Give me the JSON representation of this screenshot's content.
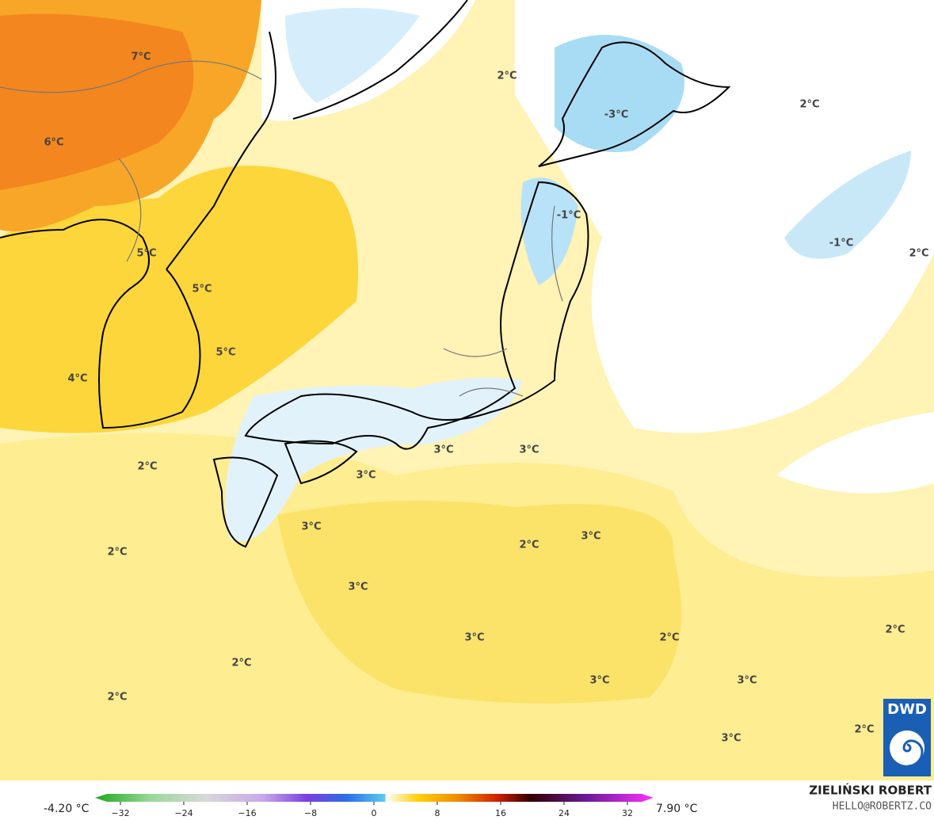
{
  "map": {
    "labels": [
      "7°C",
      "6°C",
      "5°C",
      "5°C",
      "5°C",
      "4°C",
      "2°C",
      "-3°C",
      "-1°C",
      "2°C",
      "-1°C",
      "2°C",
      "3°C",
      "3°C",
      "3°C",
      "2°C",
      "3°C",
      "2°C",
      "2°C",
      "3°C",
      "3°C",
      "3°C",
      "2°C",
      "2°C",
      "2°C",
      "3°C",
      "3°C",
      "2°C",
      "2°C",
      "3°C"
    ]
  },
  "colorbar": {
    "min_label": "-4.20 °C",
    "max_label": "7.90 °C",
    "ticks": [
      "−32",
      "−24",
      "−16",
      "−8",
      "0",
      "8",
      "16",
      "24",
      "32"
    ]
  },
  "credit": {
    "name": "ZIELIŃSKI ROBERT",
    "email": "HELLO@ROBERTZ.CO"
  },
  "logo": {
    "text": "DWD"
  }
}
